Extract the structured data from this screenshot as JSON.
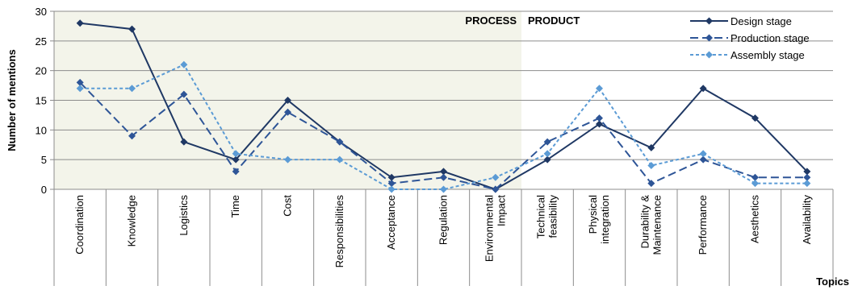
{
  "chart_data": {
    "type": "line",
    "categories": [
      [
        "Coordination"
      ],
      [
        "Knowledge"
      ],
      [
        "Logistics"
      ],
      [
        "Time"
      ],
      [
        "Cost"
      ],
      [
        "Responsibilities"
      ],
      [
        "Acceptance"
      ],
      [
        "Regulation"
      ],
      [
        "Environmental",
        "Impact"
      ],
      [
        "Technical",
        "feasibility"
      ],
      [
        "Physical",
        "integration"
      ],
      [
        "Durability &",
        "Maintenance"
      ],
      [
        "Performance"
      ],
      [
        "Aesthetics"
      ],
      [
        "Availability"
      ]
    ],
    "series": [
      {
        "name": "Design stage",
        "color": "#1f3864",
        "dash": "solid",
        "values": [
          28,
          27,
          8,
          5,
          15,
          8,
          2,
          3,
          0,
          5,
          11,
          7,
          17,
          12,
          3
        ]
      },
      {
        "name": "Production stage",
        "color": "#2e5597",
        "dash": "dash",
        "values": [
          18,
          9,
          16,
          3,
          13,
          8,
          1,
          2,
          0,
          8,
          12,
          1,
          5,
          2,
          2
        ]
      },
      {
        "name": "Assembly stage",
        "color": "#5b9bd5",
        "dash": "dot",
        "values": [
          17,
          17,
          21,
          6,
          5,
          5,
          0,
          0,
          2,
          6,
          17,
          4,
          6,
          1,
          1
        ]
      }
    ],
    "ylabel": "Number of mentions",
    "xlabel": "Topics",
    "ylim": [
      0,
      30
    ],
    "yticks": [
      0,
      5,
      10,
      15,
      20,
      25,
      30
    ],
    "regions": [
      {
        "label": "PROCESS",
        "start_index": 0,
        "end_index": 8,
        "shaded": true,
        "color": "#f3f4ea"
      },
      {
        "label": "PRODUCT",
        "start_index": 9,
        "end_index": 14,
        "shaded": false
      }
    ],
    "legend_position": "top-right",
    "grid": true
  }
}
